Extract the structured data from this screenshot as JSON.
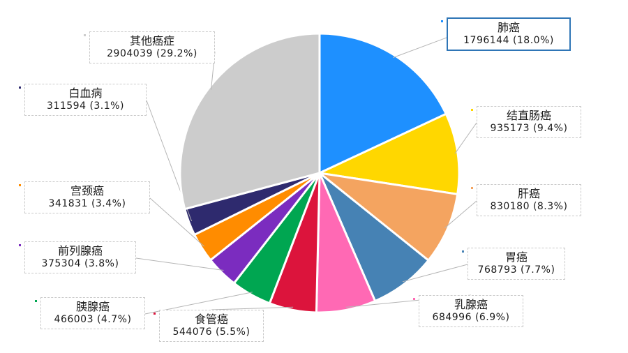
{
  "chart_data": {
    "type": "pie",
    "slices": [
      {
        "name": "肺癌",
        "value": 1796144,
        "pct_label": "1796144 (18.0%)",
        "color": "#1e90ff"
      },
      {
        "name": "结直肠癌",
        "value": 935173,
        "pct_label": "935173 (9.4%)",
        "color": "#ffd700"
      },
      {
        "name": "肝癌",
        "value": 830180,
        "pct_label": "830180 (8.3%)",
        "color": "#f4a460"
      },
      {
        "name": "胃癌",
        "value": 768793,
        "pct_label": "768793 (7.7%)",
        "color": "#4682b4"
      },
      {
        "name": "乳腺癌",
        "value": 684996,
        "pct_label": "684996 (6.9%)",
        "color": "#ff69b4"
      },
      {
        "name": "食管癌",
        "value": 544076,
        "pct_label": "544076 (5.5%)",
        "color": "#dc143c"
      },
      {
        "name": "胰腺癌",
        "value": 466003,
        "pct_label": "466003 (4.7%)",
        "color": "#00a651"
      },
      {
        "name": "前列腺癌",
        "value": 375304,
        "pct_label": "375304 (3.8%)",
        "color": "#7b2cbf"
      },
      {
        "name": "宫颈癌",
        "value": 341831,
        "pct_label": "341831 (3.4%)",
        "color": "#ff8c00"
      },
      {
        "name": "白血病",
        "value": 311594,
        "pct_label": "311594 (3.1%)",
        "color": "#2e2a6e"
      },
      {
        "name": "其他癌症",
        "value": 2904039,
        "pct_label": "2904039 (29.2%)",
        "color": "#cccccc"
      }
    ],
    "highlighted": "肺癌",
    "legend": "none",
    "title": ""
  }
}
